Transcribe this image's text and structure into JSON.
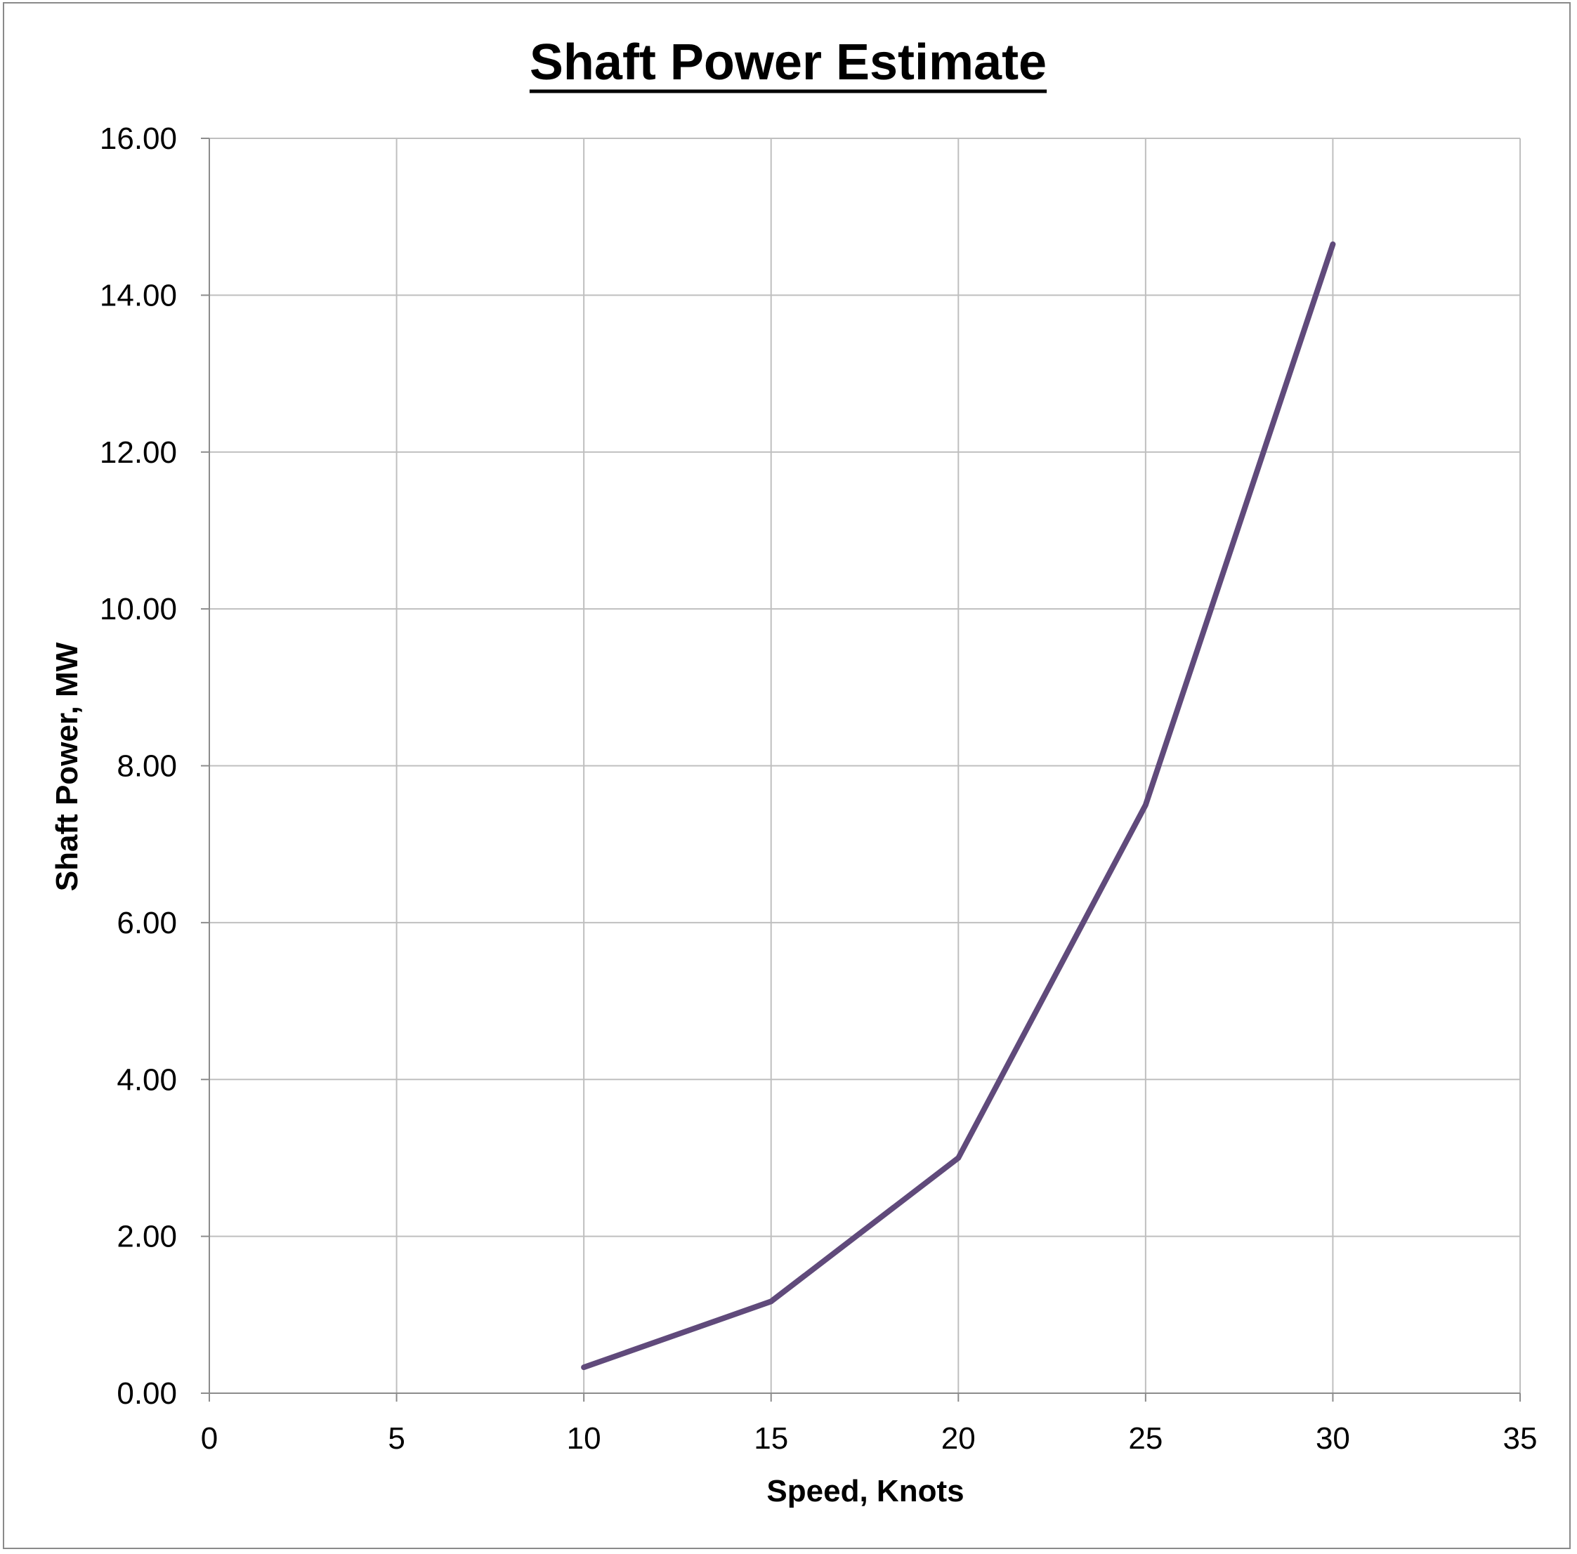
{
  "chart_data": {
    "type": "line",
    "title": "Shaft Power Estimate",
    "xlabel": "Speed, Knots",
    "ylabel": "Shaft Power, MW",
    "xlim": [
      0,
      35
    ],
    "ylim": [
      0,
      16
    ],
    "x_ticks": [
      "0",
      "5",
      "10",
      "15",
      "20",
      "25",
      "30",
      "35"
    ],
    "y_ticks": [
      "0.00",
      "2.00",
      "4.00",
      "6.00",
      "8.00",
      "10.00",
      "12.00",
      "14.00",
      "16.00"
    ],
    "grid": true,
    "legend": "none",
    "series": [
      {
        "color": "#604a7b",
        "points": [
          {
            "x": 10,
            "y": 0.33
          },
          {
            "x": 15,
            "y": 1.17
          },
          {
            "x": 20,
            "y": 3.0
          },
          {
            "x": 25,
            "y": 7.5
          },
          {
            "x": 30,
            "y": 14.65
          }
        ]
      }
    ],
    "colors": {
      "grid": "#bfbfbf",
      "axis": "#8c8c8c",
      "frame": "#8a8a8a"
    }
  }
}
